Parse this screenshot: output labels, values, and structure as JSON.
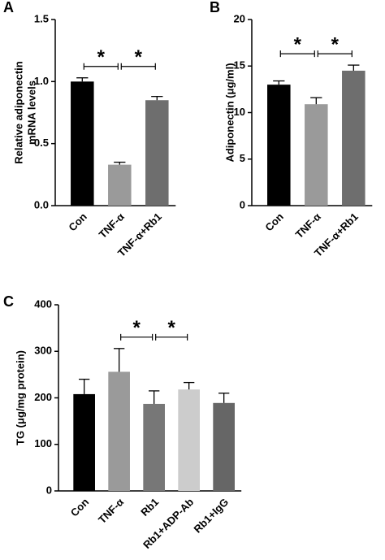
{
  "chart_data": [
    {
      "type": "bar",
      "panel": "A",
      "y_label": [
        "Relative adiponectin",
        "mRNA levels"
      ],
      "categories": [
        "Con",
        "TNF-α",
        "TNF-α+Rb1"
      ],
      "values": [
        1.0,
        0.33,
        0.85
      ],
      "errors": [
        0.03,
        0.02,
        0.03
      ],
      "colors": [
        "#000000",
        "#9a9a9a",
        "#6e6e6e"
      ],
      "ylim": [
        0,
        1.5
      ],
      "yticks": [
        {
          "value": 0,
          "label": "0.0"
        },
        0.5,
        {
          "value": 1,
          "label": "1.0"
        },
        1.5
      ],
      "annotations": [
        {
          "text": "*",
          "between": [
            0,
            1
          ]
        },
        {
          "text": "*",
          "between": [
            1,
            2
          ]
        }
      ]
    },
    {
      "type": "bar",
      "panel": "B",
      "y_label": [
        "Adiponectin (μg/ml)"
      ],
      "categories": [
        "Con",
        "TNF-α",
        "TNF-α+Rb1"
      ],
      "values": [
        13.0,
        10.9,
        14.5
      ],
      "errors": [
        0.4,
        0.7,
        0.6
      ],
      "colors": [
        "#000000",
        "#9a9a9a",
        "#6e6e6e"
      ],
      "ylim": [
        0,
        20
      ],
      "yticks": [
        0,
        5,
        10,
        15,
        20
      ],
      "annotations": [
        {
          "text": "*",
          "between": [
            0,
            1
          ]
        },
        {
          "text": "*",
          "between": [
            1,
            2
          ]
        }
      ]
    },
    {
      "type": "bar",
      "panel": "C",
      "y_label": [
        "TG (μg/mg protein)"
      ],
      "categories": [
        "Con",
        "TNF-α",
        "Rb1",
        "Rb1+ADP-Ab",
        "Rb1+IgG"
      ],
      "values": [
        208,
        256,
        187,
        218,
        189
      ],
      "errors": [
        32,
        50,
        28,
        15,
        21
      ],
      "colors": [
        "#000000",
        "#9a9a9a",
        "#777777",
        "#cccccc",
        "#666666"
      ],
      "ylim": [
        0,
        400
      ],
      "yticks": [
        0,
        100,
        200,
        300,
        400
      ],
      "annotations": [
        {
          "text": "*",
          "between": [
            1,
            2
          ]
        },
        {
          "text": "*",
          "between": [
            2,
            3
          ]
        }
      ]
    }
  ]
}
